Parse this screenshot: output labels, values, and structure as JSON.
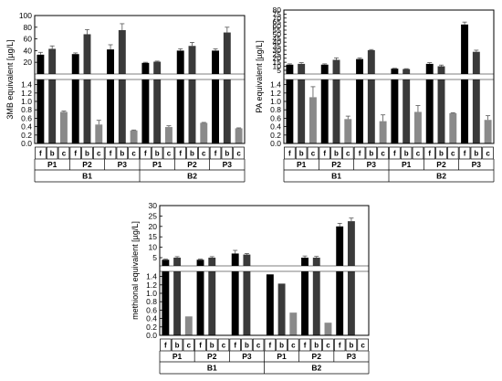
{
  "chart_data": [
    {
      "id": "3mb",
      "type": "bar",
      "ylabel": "3MB equivalent [µg/L]",
      "lower_ticks": [
        "0.0",
        "0.2",
        "0.4",
        "0.6",
        "0.8",
        "1.0",
        "1.2",
        "1.4"
      ],
      "upper_ticks": [
        "20",
        "40",
        "60",
        "80",
        "100"
      ],
      "lower_range": [
        0,
        1.5
      ],
      "upper_range": [
        1.5,
        100
      ],
      "fraction_labels": [
        "f",
        "b",
        "c",
        "f",
        "b",
        "c",
        "f",
        "b",
        "c",
        "f",
        "b",
        "c",
        "f",
        "b",
        "c",
        "f",
        "b",
        "c"
      ],
      "p_labels": [
        "P1",
        "P2",
        "P3",
        "P1",
        "P2",
        "P3"
      ],
      "b_labels": [
        "B1",
        "B2"
      ],
      "values": [
        33,
        43,
        0.75,
        34,
        68,
        0.45,
        42,
        75,
        0.31,
        19,
        21,
        0.39,
        40,
        48,
        0.49,
        40,
        71,
        0.36
      ],
      "errors": [
        4,
        5,
        0.02,
        2,
        8,
        0.1,
        8,
        11,
        0.01,
        1,
        1,
        0.03,
        3,
        6,
        0.01,
        3,
        9,
        0.01
      ]
    },
    {
      "id": "pa",
      "type": "bar",
      "ylabel": "PA equivalent [µg/L]",
      "lower_ticks": [
        "0.0",
        "0.2",
        "0.4",
        "0.6",
        "0.8",
        "1.0",
        "1.2",
        "1.4"
      ],
      "upper_ticks": [
        "5",
        "10",
        "15",
        "20",
        "25",
        "30",
        "35",
        "40",
        "45",
        "50",
        "55",
        "60",
        "65",
        "70",
        "75",
        "80"
      ],
      "lower_range": [
        0,
        1.5
      ],
      "upper_range": [
        1.5,
        80
      ],
      "fraction_labels": [
        "f",
        "b",
        "c",
        "f",
        "b",
        "c",
        "f",
        "b",
        "c",
        "f",
        "b",
        "c",
        "f",
        "b",
        "c",
        "f",
        "b",
        "c"
      ],
      "p_labels": [
        "P1",
        "P2",
        "P3",
        "P1",
        "P2",
        "P3"
      ],
      "b_labels": [
        "B1",
        "B2"
      ],
      "values": [
        12,
        13,
        1.1,
        12,
        18,
        0.58,
        19,
        30,
        0.53,
        7,
        6.5,
        0.75,
        13,
        10,
        0.72,
        62,
        28,
        0.56
      ],
      "errors": [
        1,
        1.5,
        0.25,
        1,
        2.5,
        0.07,
        1.5,
        0.8,
        0.15,
        0.5,
        0.5,
        0.15,
        1.5,
        1.5,
        0.01,
        3,
        2,
        0.1
      ]
    },
    {
      "id": "methional",
      "type": "bar",
      "ylabel": "methional equivalent [µg/L]",
      "lower_ticks": [
        "0.0",
        "0.2",
        "0.4",
        "0.6",
        "0.8",
        "1.0",
        "1.2",
        "1.4"
      ],
      "upper_ticks": [
        "5",
        "10",
        "15",
        "20",
        "25",
        "30"
      ],
      "lower_range": [
        0,
        1.5
      ],
      "upper_range": [
        1.5,
        30
      ],
      "fraction_labels": [
        "f",
        "b",
        "c",
        "f",
        "b",
        "c",
        "f",
        "b",
        "c",
        "f",
        "b",
        "c",
        "f",
        "b",
        "c",
        "f",
        "b",
        "c"
      ],
      "p_labels": [
        "P1",
        "P2",
        "P3",
        "P1",
        "P2",
        "P3"
      ],
      "b_labels": [
        "B1",
        "B2"
      ],
      "values": [
        4,
        5,
        0.45,
        4,
        5,
        0,
        7,
        6.5,
        0,
        1.45,
        1.23,
        0.54,
        5,
        5,
        0.3,
        20,
        22.5,
        0
      ],
      "errors": [
        0.3,
        0.5,
        0,
        0.3,
        0.5,
        0,
        1.5,
        0.5,
        0,
        0,
        0,
        0,
        0.8,
        0.6,
        0,
        1.5,
        1.5,
        0
      ]
    }
  ]
}
